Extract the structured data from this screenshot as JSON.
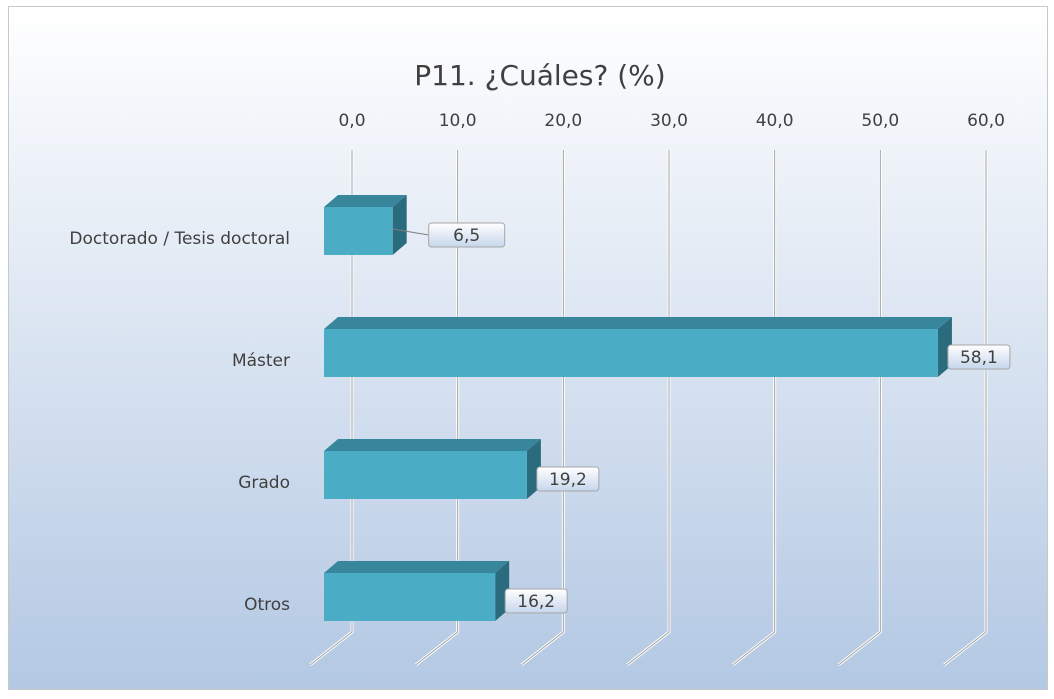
{
  "chart_data": {
    "type": "bar3d",
    "orientation": "horizontal",
    "title": "P11. ¿Cuáles? (%)",
    "categories": [
      "Doctorado / Tesis doctoral",
      "Máster",
      "Grado",
      "Otros"
    ],
    "values": [
      6.5,
      58.1,
      19.2,
      16.2
    ],
    "value_labels": [
      "6,5",
      "58,1",
      "19,2",
      "16,2"
    ],
    "color": "#4bacc6",
    "xlim": [
      0,
      60
    ],
    "xticks": [
      {
        "value": 0,
        "label": "0,0"
      },
      {
        "value": 10,
        "label": "10,0"
      },
      {
        "value": 20,
        "label": "20,0"
      },
      {
        "value": 30,
        "label": "30,0"
      },
      {
        "value": 40,
        "label": "40,0"
      },
      {
        "value": 50,
        "label": "50,0"
      },
      {
        "value": 60,
        "label": "60,0"
      }
    ],
    "grid": true
  }
}
